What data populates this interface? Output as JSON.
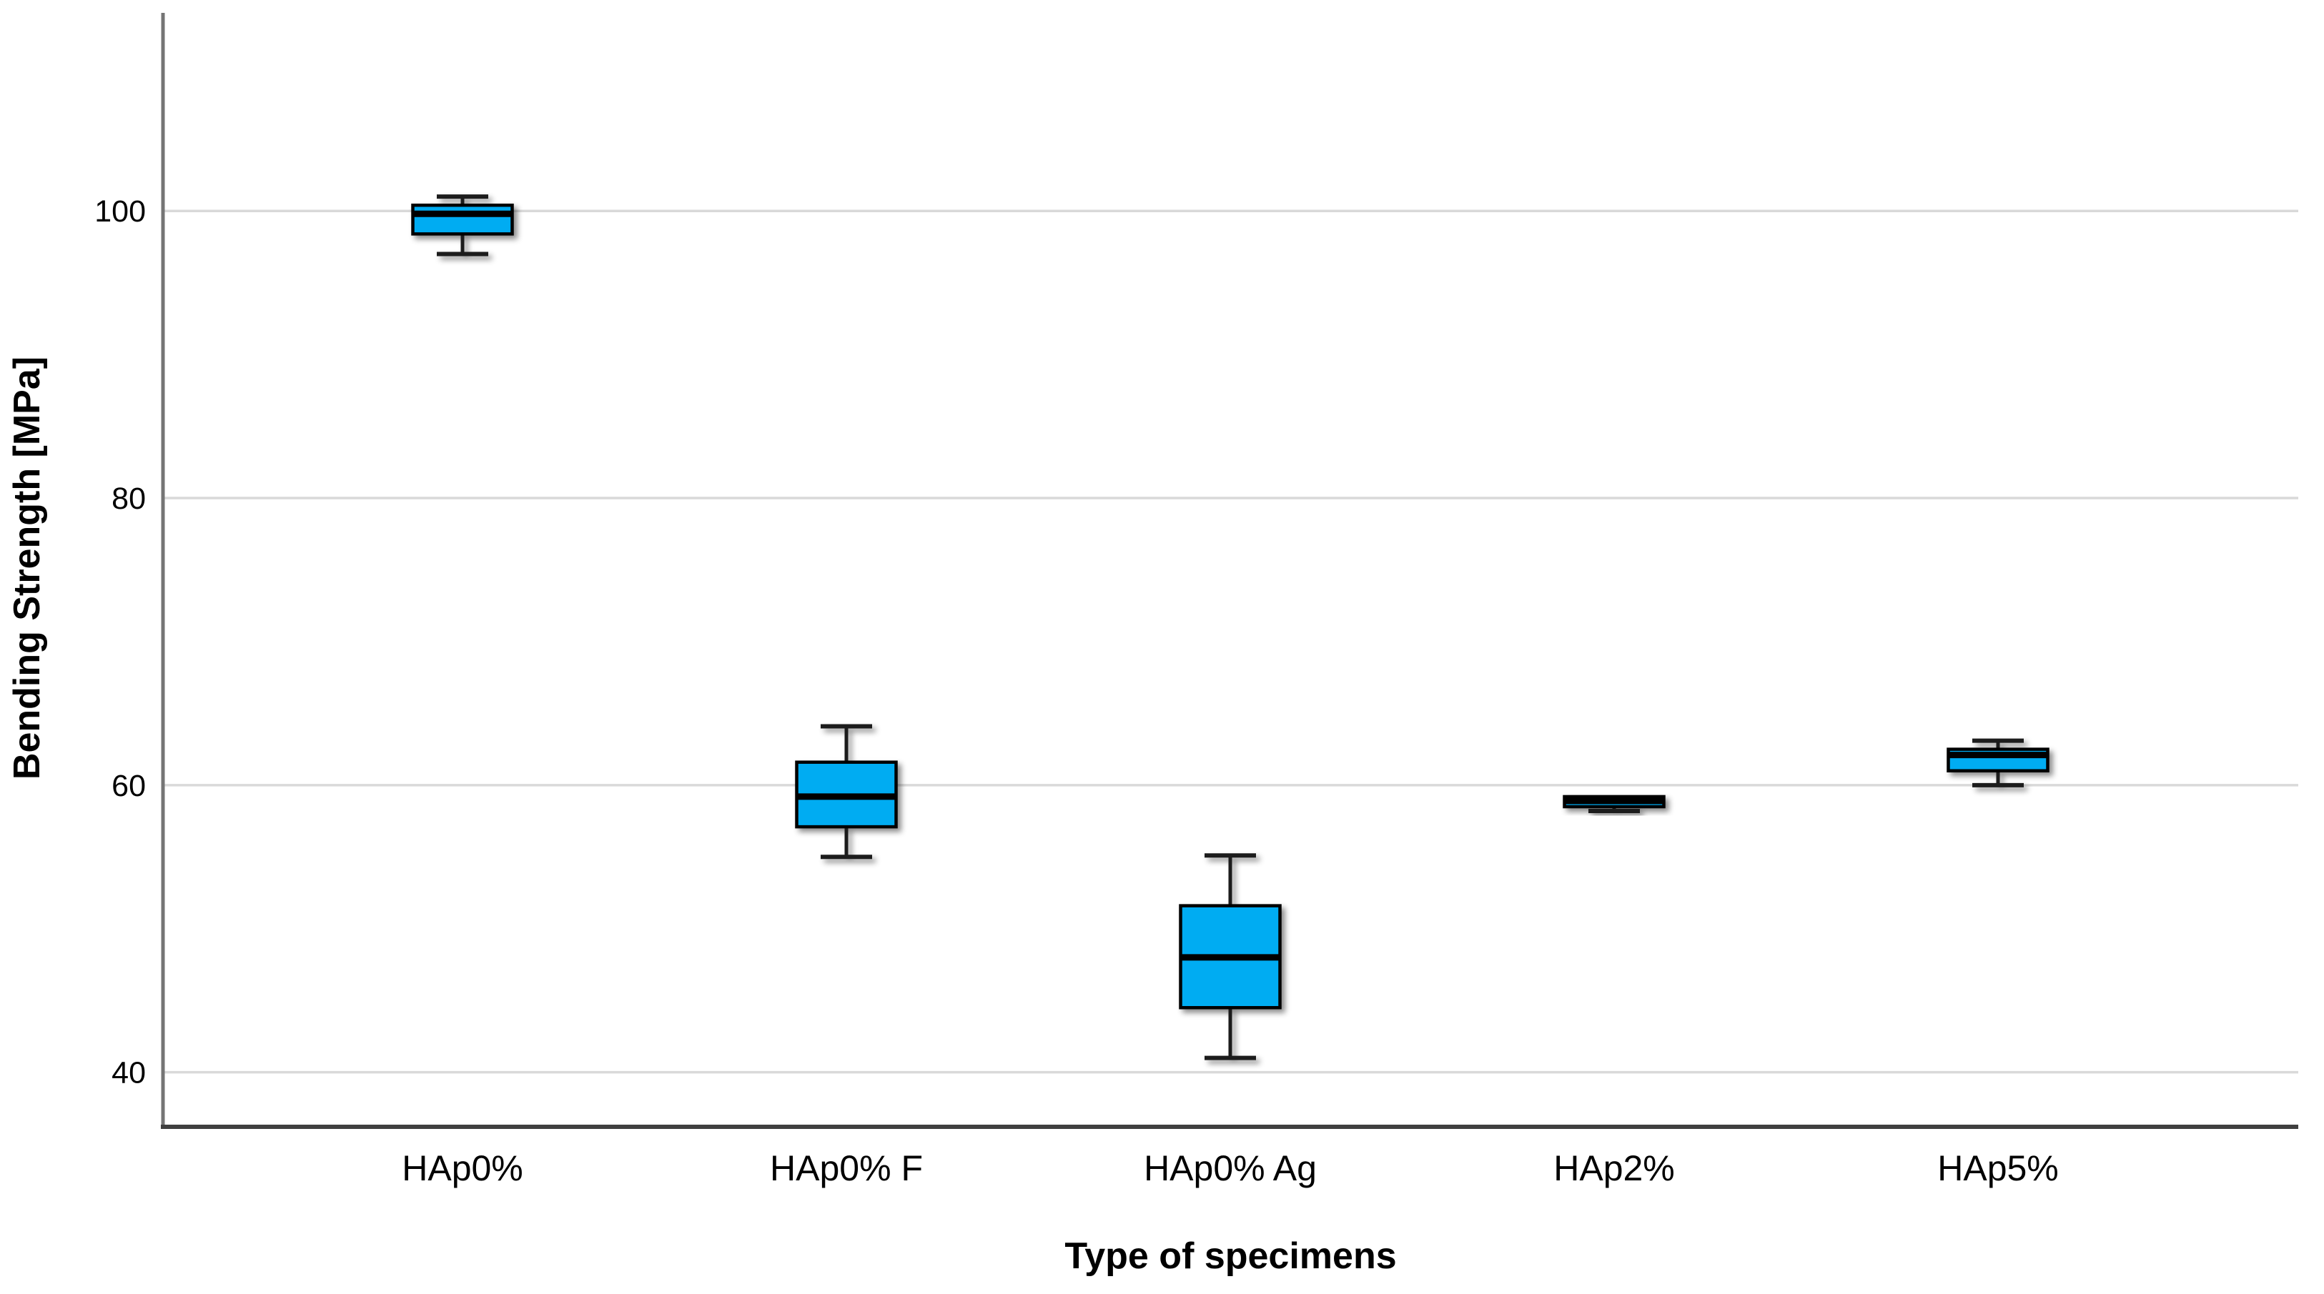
{
  "chart_data": {
    "type": "boxplot",
    "title": "",
    "xlabel": "Type of specimens",
    "ylabel": "Bending Strength [MPa]",
    "categories": [
      "HAp0%",
      "HAp0% F",
      "HAp0% Ag",
      "HAp2%",
      "HAp5%"
    ],
    "yticks": [
      100,
      80,
      60,
      40
    ],
    "ylim": [
      36.2,
      113.8
    ],
    "grid": "horizontal",
    "legend": "none",
    "series": [
      {
        "category": "HAp0%",
        "min": 97.0,
        "q1": 98.4,
        "median": 99.8,
        "q3": 100.4,
        "max": 101.0
      },
      {
        "category": "HAp0% F",
        "min": 55.0,
        "q1": 57.1,
        "median": 59.2,
        "q3": 61.6,
        "max": 64.1
      },
      {
        "category": "HAp0% Ag",
        "min": 41.0,
        "q1": 44.5,
        "median": 48.0,
        "q3": 51.6,
        "max": 55.1
      },
      {
        "category": "HAp2%",
        "min": 58.2,
        "q1": 58.5,
        "median": 58.9,
        "q3": 59.2,
        "max": 59.2
      },
      {
        "category": "HAp5%",
        "min": 60.0,
        "q1": 61.0,
        "median": 62.1,
        "q3": 62.5,
        "max": 63.1
      }
    ],
    "colors": {
      "box_fill": "#00ACF2",
      "box_border": "#000000",
      "median": "#000000",
      "whisker": "#1A1A1A",
      "gridline": "#D9D9D9",
      "x_axis": "#3F3F3F",
      "y_axis": "#757575",
      "background": "#FFFFFF",
      "text": "#000000"
    }
  }
}
